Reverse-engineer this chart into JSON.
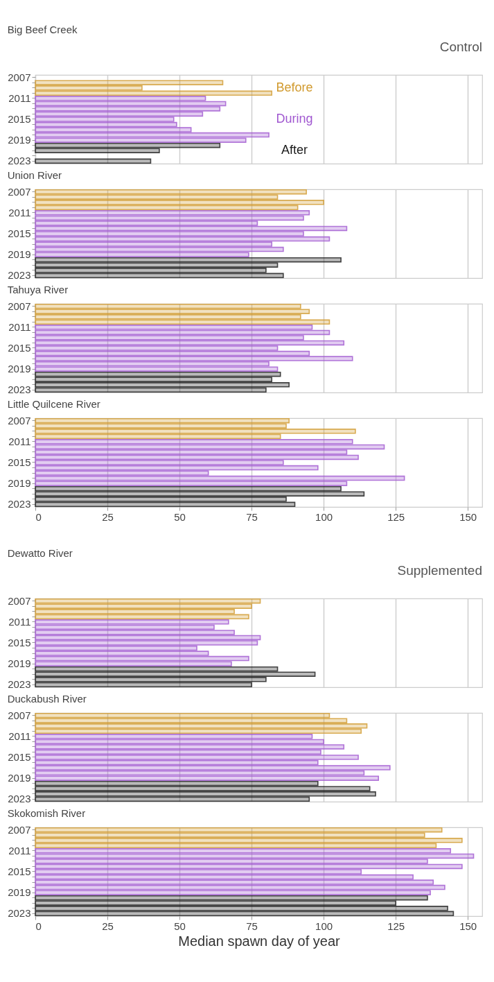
{
  "chart_data": [
    {
      "type": "bar",
      "orientation": "horizontal",
      "title": "Big Beef Creek",
      "annotations": [
        "Control"
      ],
      "categories": [
        "2007",
        null,
        null,
        null,
        "2011",
        null,
        null,
        null,
        "2015",
        null,
        null,
        null,
        "2019",
        null,
        null,
        null,
        "2023"
      ],
      "xlim": [
        0,
        155
      ],
      "xticks": [
        0,
        25,
        50,
        75,
        100,
        125,
        150
      ],
      "grid": "x",
      "tick_labels": "y",
      "series": [
        {
          "name": "Before",
          "color": "#d19a2e",
          "values": [
            null,
            65,
            37,
            82,
            null,
            null,
            null,
            null,
            null,
            null,
            null,
            null,
            null,
            null,
            null,
            null,
            null
          ]
        },
        {
          "name": "During",
          "color": "#a057d0",
          "values": [
            null,
            null,
            null,
            null,
            59,
            66,
            64,
            58,
            48,
            49,
            54,
            81,
            73,
            null,
            null,
            null,
            null
          ]
        },
        {
          "name": "After",
          "color": "#1a1a1a",
          "values": [
            null,
            null,
            null,
            null,
            null,
            null,
            null,
            null,
            null,
            null,
            null,
            null,
            null,
            64,
            43,
            null,
            40
          ]
        }
      ]
    },
    {
      "type": "bar",
      "orientation": "horizontal",
      "title": "Union River",
      "categories": [
        "2007",
        null,
        null,
        null,
        "2011",
        null,
        null,
        null,
        "2015",
        null,
        null,
        null,
        "2019",
        null,
        null,
        null,
        "2023"
      ],
      "xlim": [
        0,
        155
      ],
      "xticks": [
        0,
        25,
        50,
        75,
        100,
        125,
        150
      ],
      "grid": "x",
      "tick_labels": "y",
      "series": [
        {
          "color": "#d19a2e",
          "values": [
            94,
            84,
            100,
            91,
            null,
            null,
            null,
            null,
            null,
            null,
            null,
            null,
            null,
            null,
            null,
            null,
            null
          ]
        },
        {
          "color": "#a057d0",
          "values": [
            null,
            null,
            null,
            null,
            95,
            93,
            77,
            108,
            93,
            102,
            82,
            86,
            74,
            null,
            null,
            null,
            null
          ]
        },
        {
          "color": "#1a1a1a",
          "values": [
            null,
            null,
            null,
            null,
            null,
            null,
            null,
            null,
            null,
            null,
            null,
            null,
            null,
            106,
            84,
            80,
            86
          ]
        }
      ]
    },
    {
      "type": "bar",
      "orientation": "horizontal",
      "title": "Tahuya River",
      "categories": [
        "2007",
        null,
        null,
        null,
        "2011",
        null,
        null,
        null,
        "2015",
        null,
        null,
        null,
        "2019",
        null,
        null,
        null,
        "2023"
      ],
      "xlim": [
        0,
        155
      ],
      "xticks": [
        0,
        25,
        50,
        75,
        100,
        125,
        150
      ],
      "grid": "x",
      "tick_labels": "y",
      "series": [
        {
          "color": "#d19a2e",
          "values": [
            92,
            95,
            92,
            102,
            null,
            null,
            null,
            null,
            null,
            null,
            null,
            null,
            null,
            null,
            null,
            null,
            null
          ]
        },
        {
          "color": "#a057d0",
          "values": [
            null,
            null,
            null,
            null,
            96,
            102,
            93,
            107,
            84,
            95,
            110,
            81,
            84,
            null,
            null,
            null,
            null
          ]
        },
        {
          "color": "#1a1a1a",
          "values": [
            null,
            null,
            null,
            null,
            null,
            null,
            null,
            null,
            null,
            null,
            null,
            null,
            null,
            85,
            82,
            88,
            80
          ]
        }
      ]
    },
    {
      "type": "bar",
      "orientation": "horizontal",
      "title": "Little Quilcene River",
      "categories": [
        "2007",
        null,
        null,
        null,
        "2011",
        null,
        null,
        null,
        "2015",
        null,
        null,
        null,
        "2019",
        null,
        null,
        null,
        "2023"
      ],
      "xlim": [
        0,
        155
      ],
      "xticks": [
        0,
        25,
        50,
        75,
        100,
        125,
        150
      ],
      "grid": "x",
      "series": [
        {
          "color": "#d19a2e",
          "values": [
            88,
            87,
            111,
            85,
            null,
            null,
            null,
            null,
            null,
            null,
            null,
            null,
            null,
            null,
            null,
            null,
            null
          ]
        },
        {
          "color": "#a057d0",
          "values": [
            null,
            null,
            null,
            null,
            110,
            121,
            108,
            112,
            86,
            98,
            60,
            128,
            108,
            null,
            null,
            null,
            null
          ]
        },
        {
          "color": "#1a1a1a",
          "values": [
            null,
            null,
            null,
            null,
            null,
            null,
            null,
            null,
            null,
            null,
            null,
            null,
            null,
            106,
            114,
            87,
            90
          ]
        }
      ]
    },
    {
      "type": "bar",
      "orientation": "horizontal",
      "title": "Dewatto River",
      "annotations": [
        "Supplemented"
      ],
      "categories": [
        "2007",
        null,
        null,
        null,
        "2011",
        null,
        null,
        null,
        "2015",
        null,
        null,
        null,
        "2019",
        null,
        null,
        null,
        "2023"
      ],
      "xlim": [
        0,
        155
      ],
      "xticks": [
        0,
        25,
        50,
        75,
        100,
        125,
        150
      ],
      "grid": "x",
      "tick_labels": "y",
      "series": [
        {
          "color": "#d19a2e",
          "values": [
            78,
            75,
            69,
            74,
            null,
            null,
            null,
            null,
            null,
            null,
            null,
            null,
            null,
            null,
            null,
            null,
            null
          ]
        },
        {
          "color": "#a057d0",
          "values": [
            null,
            null,
            null,
            null,
            67,
            62,
            69,
            78,
            77,
            56,
            60,
            74,
            68,
            null,
            null,
            null,
            null
          ]
        },
        {
          "color": "#1a1a1a",
          "values": [
            null,
            null,
            null,
            null,
            null,
            null,
            null,
            null,
            null,
            null,
            null,
            null,
            null,
            84,
            97,
            80,
            75
          ]
        }
      ]
    },
    {
      "type": "bar",
      "orientation": "horizontal",
      "title": "Duckabush River",
      "categories": [
        "2007",
        null,
        null,
        null,
        "2011",
        null,
        null,
        null,
        "2015",
        null,
        null,
        null,
        "2019",
        null,
        null,
        null,
        "2023"
      ],
      "xlim": [
        0,
        155
      ],
      "xticks": [
        0,
        25,
        50,
        75,
        100,
        125,
        150
      ],
      "grid": "x",
      "tick_labels": "y",
      "series": [
        {
          "color": "#d19a2e",
          "values": [
            102,
            108,
            115,
            113,
            null,
            null,
            null,
            null,
            null,
            null,
            null,
            null,
            null,
            null,
            null,
            null,
            null
          ]
        },
        {
          "color": "#a057d0",
          "values": [
            null,
            null,
            null,
            null,
            96,
            100,
            107,
            99,
            112,
            98,
            123,
            114,
            119,
            null,
            null,
            null,
            null
          ]
        },
        {
          "color": "#1a1a1a",
          "values": [
            null,
            null,
            null,
            null,
            null,
            null,
            null,
            null,
            null,
            null,
            null,
            null,
            null,
            98,
            116,
            118,
            95
          ]
        }
      ]
    },
    {
      "type": "bar",
      "orientation": "horizontal",
      "title": "Skokomish River",
      "xlabel": "Median spawn day of year",
      "categories": [
        "2007",
        null,
        null,
        null,
        "2011",
        null,
        null,
        null,
        "2015",
        null,
        null,
        null,
        "2019",
        null,
        null,
        null,
        "2023"
      ],
      "xlim": [
        0,
        155
      ],
      "xticks": [
        0,
        25,
        50,
        75,
        100,
        125,
        150
      ],
      "grid": "x",
      "series": [
        {
          "color": "#d19a2e",
          "values": [
            141,
            135,
            148,
            139,
            null,
            null,
            null,
            null,
            null,
            null,
            null,
            null,
            null,
            null,
            null,
            null,
            null
          ]
        },
        {
          "color": "#a057d0",
          "values": [
            null,
            null,
            null,
            null,
            144,
            152,
            136,
            148,
            113,
            131,
            138,
            142,
            137,
            null,
            null,
            null,
            null
          ]
        },
        {
          "color": "#1a1a1a",
          "values": [
            null,
            null,
            null,
            null,
            null,
            null,
            null,
            null,
            null,
            null,
            null,
            null,
            null,
            136,
            125,
            143,
            145
          ]
        }
      ]
    }
  ]
}
